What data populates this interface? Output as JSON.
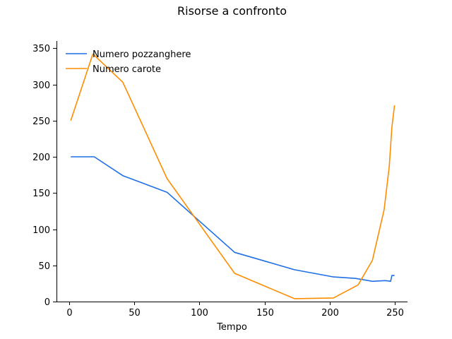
{
  "chart_data": {
    "type": "line",
    "title": "Risorse a confronto",
    "xlabel": "Tempo",
    "ylabel": "",
    "xlim": [
      -10,
      260
    ],
    "ylim": [
      0,
      360
    ],
    "xticks": [
      0,
      50,
      100,
      150,
      200,
      250
    ],
    "yticks": [
      0,
      50,
      100,
      150,
      200,
      250,
      300,
      350
    ],
    "grid": false,
    "legend": "top-left",
    "series": [
      {
        "name": "Numero pozzanghere",
        "color": "#1f6fe5",
        "x": [
          1,
          19,
          41,
          75,
          127,
          173,
          203,
          220,
          233,
          243,
          247,
          248,
          250
        ],
        "y": [
          200,
          200,
          174,
          151,
          68,
          44,
          34,
          32,
          28,
          29,
          28,
          36,
          36
        ]
      },
      {
        "name": "Numero carote",
        "color": "#ff8c00",
        "x": [
          1,
          18,
          41,
          75,
          127,
          173,
          203,
          222,
          233,
          242,
          246,
          248,
          250
        ],
        "y": [
          250,
          342,
          303,
          170,
          39,
          4,
          5,
          23,
          57,
          127,
          187,
          241,
          271
        ]
      }
    ]
  }
}
